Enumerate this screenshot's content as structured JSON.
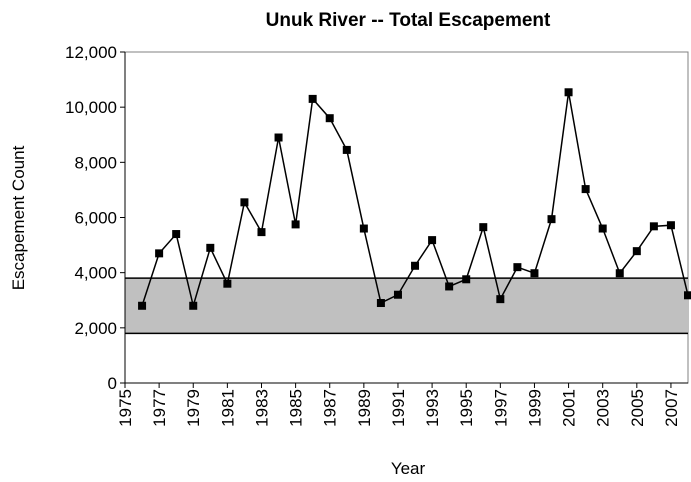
{
  "chart_data": {
    "type": "line",
    "title": "Unuk River -- Total Escapement",
    "x_label": "Year",
    "y_label": "Escapement Count",
    "x": [
      1976,
      1977,
      1978,
      1979,
      1980,
      1981,
      1982,
      1983,
      1984,
      1985,
      1986,
      1987,
      1988,
      1989,
      1990,
      1991,
      1992,
      1993,
      1994,
      1995,
      1996,
      1997,
      1998,
      1999,
      2000,
      2001,
      2002,
      2003,
      2004,
      2005,
      2006,
      2007,
      2008
    ],
    "series": [
      {
        "name": "Total Escapement",
        "color": "#000000",
        "values": [
          2800,
          4700,
          5400,
          2800,
          4900,
          3600,
          6550,
          5470,
          8900,
          5750,
          10300,
          9600,
          8450,
          5600,
          2900,
          3200,
          4250,
          5180,
          3500,
          3760,
          5650,
          3040,
          4200,
          3980,
          5940,
          10540,
          7030,
          5600,
          3980,
          4780,
          5680,
          5720,
          3180
        ]
      }
    ],
    "band": [
      1800,
      3800
    ],
    "band_color": "#c0c0c0",
    "xlim": [
      1975,
      2008
    ],
    "xticks": [
      1975,
      1977,
      1979,
      1981,
      1983,
      1985,
      1987,
      1989,
      1991,
      1993,
      1995,
      1997,
      1999,
      2001,
      2003,
      2005,
      2007
    ],
    "ylim": [
      0,
      12000
    ],
    "yticks": [
      0,
      {
        "value": 2000,
        "label": "2,000"
      },
      {
        "value": 4000,
        "label": "4,000"
      },
      {
        "value": 6000,
        "label": "6,000"
      },
      {
        "value": 8000,
        "label": "8,000"
      },
      {
        "value": 10000,
        "label": "10,000"
      },
      {
        "value": 12000,
        "label": "12,000"
      }
    ],
    "grid": false
  }
}
